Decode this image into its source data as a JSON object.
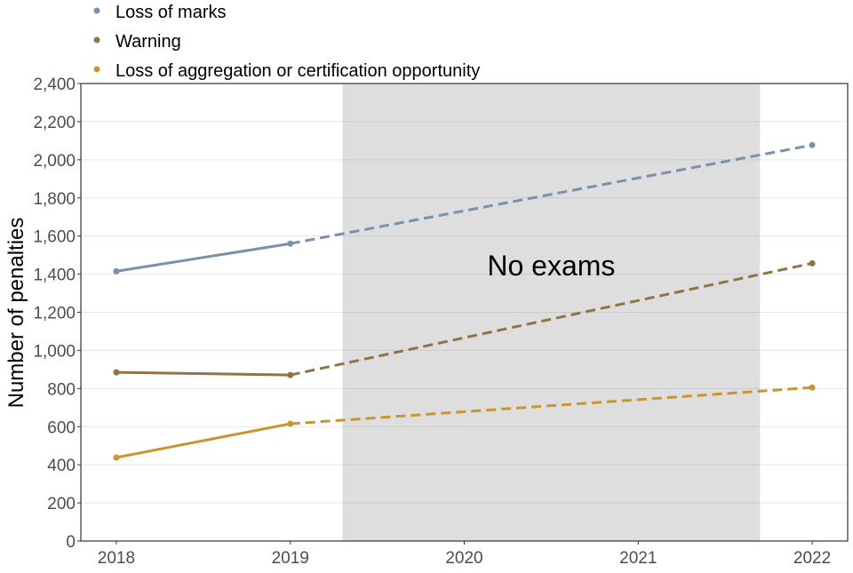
{
  "chart_data": {
    "type": "line",
    "title": "",
    "xlabel": "",
    "ylabel": "Number of penalties",
    "x": [
      2018,
      2019,
      2022
    ],
    "x_ticks": [
      "2018",
      "2019",
      "2020",
      "2021",
      "2022"
    ],
    "ylim": [
      0,
      2400
    ],
    "y_ticks": [
      "0",
      "200",
      "400",
      "600",
      "800",
      "1,000",
      "1,200",
      "1,400",
      "1,600",
      "1,800",
      "2,000",
      "2,200",
      "2,400"
    ],
    "legend_position": "top-left",
    "grid": true,
    "shaded_region": {
      "from": 2019.3,
      "to": 2021.7,
      "label": "No exams",
      "color": "#dedede"
    },
    "series": [
      {
        "name": "Loss of marks",
        "color": "#7a90ab",
        "values": [
          1415,
          1560,
          2077
        ]
      },
      {
        "name": "Warning",
        "color": "#8e7545",
        "values": [
          885,
          871,
          1457
        ]
      },
      {
        "name": "Loss of aggregation or certification opportunity",
        "color": "#c9952f",
        "values": [
          438,
          615,
          805
        ]
      }
    ]
  }
}
